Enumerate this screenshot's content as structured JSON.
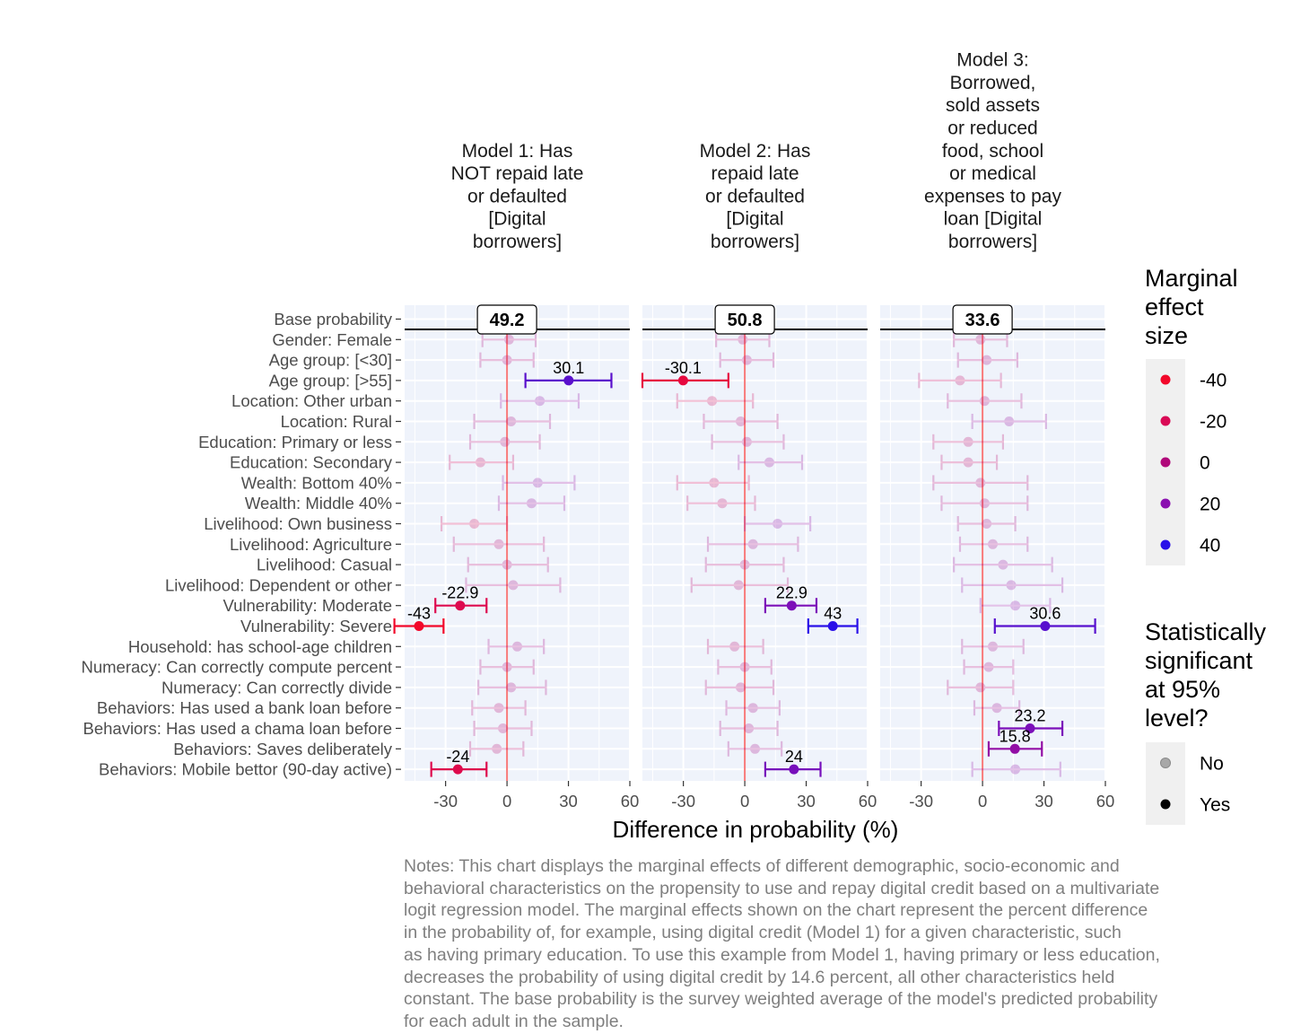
{
  "chart_data": {
    "type": "dot-errorbar",
    "xlabel": "Difference in probability (%)",
    "xlim": [
      -50,
      60
    ],
    "xticks": [
      -30,
      0,
      30,
      60
    ],
    "grid": true,
    "legend_position": "right",
    "rows": [
      "Base probability",
      "Gender: Female",
      "Age group: [<30]",
      "Age group: [>55]",
      "Location: Other urban",
      "Location: Rural",
      "Education: Primary or less",
      "Education: Secondary",
      "Wealth: Bottom 40%",
      "Wealth: Middle 40%",
      "Livelihood: Own business",
      "Livelihood: Agriculture",
      "Livelihood: Casual",
      "Livelihood: Dependent or other",
      "Vulnerability: Moderate",
      "Vulnerability: Severe",
      "Household: has school-age children",
      "Numeracy: Can correctly compute percent",
      "Numeracy: Can correctly divide",
      "Behaviors: Has used a bank loan before",
      "Behaviors: Has used a chama loan before",
      "Behaviors: Saves deliberately",
      "Behaviors: Mobile bettor (90-day active)"
    ],
    "panels": [
      {
        "title": [
          "Model 1: Has",
          "NOT repaid late",
          "or defaulted",
          "[Digital",
          "borrowers]"
        ],
        "base_label": "49.2",
        "points": [
          {
            "est": 1,
            "lo": -12,
            "hi": 14,
            "sig": false
          },
          {
            "est": 0,
            "lo": -13,
            "hi": 13,
            "sig": false
          },
          {
            "est": 30.1,
            "lo": 9,
            "hi": 51,
            "sig": true,
            "label": "30.1"
          },
          {
            "est": 16,
            "lo": -3,
            "hi": 35,
            "sig": false
          },
          {
            "est": 2,
            "lo": -16,
            "hi": 21,
            "sig": false
          },
          {
            "est": -1,
            "lo": -18,
            "hi": 16,
            "sig": false
          },
          {
            "est": -13,
            "lo": -28,
            "hi": 3,
            "sig": false
          },
          {
            "est": 15,
            "lo": -2,
            "hi": 33,
            "sig": false
          },
          {
            "est": 12,
            "lo": -4,
            "hi": 28,
            "sig": false
          },
          {
            "est": -16,
            "lo": -32,
            "hi": 0,
            "sig": false
          },
          {
            "est": -4,
            "lo": -26,
            "hi": 18,
            "sig": false
          },
          {
            "est": 0,
            "lo": -19,
            "hi": 20,
            "sig": false
          },
          {
            "est": 3,
            "lo": -20,
            "hi": 26,
            "sig": false
          },
          {
            "est": -22.9,
            "lo": -35,
            "hi": -10,
            "sig": true,
            "label": "-22.9"
          },
          {
            "est": -43,
            "lo": -55,
            "hi": -31,
            "sig": true,
            "label": "-43"
          },
          {
            "est": 5,
            "lo": -9,
            "hi": 18,
            "sig": false
          },
          {
            "est": 0,
            "lo": -13,
            "hi": 13,
            "sig": false
          },
          {
            "est": 2,
            "lo": -14,
            "hi": 19,
            "sig": false
          },
          {
            "est": -4,
            "lo": -17,
            "hi": 9,
            "sig": false
          },
          {
            "est": -2,
            "lo": -16,
            "hi": 12,
            "sig": false
          },
          {
            "est": -5,
            "lo": -18,
            "hi": 8,
            "sig": false
          },
          {
            "est": -24,
            "lo": -37,
            "hi": -10,
            "sig": true,
            "label": "-24"
          }
        ]
      },
      {
        "title": [
          "Model 2: Has",
          "repaid late",
          "or defaulted",
          "[Digital",
          "borrowers]"
        ],
        "base_label": "50.8",
        "points": [
          {
            "est": -1,
            "lo": -14,
            "hi": 12,
            "sig": false
          },
          {
            "est": 1,
            "lo": -12,
            "hi": 14,
            "sig": false
          },
          {
            "est": -30.1,
            "lo": -50,
            "hi": -8,
            "sig": true,
            "label": "-30.1"
          },
          {
            "est": -16,
            "lo": -33,
            "hi": 4,
            "sig": false
          },
          {
            "est": -2,
            "lo": -20,
            "hi": 16,
            "sig": false
          },
          {
            "est": 1,
            "lo": -16,
            "hi": 19,
            "sig": false
          },
          {
            "est": 12,
            "lo": -3,
            "hi": 28,
            "sig": false
          },
          {
            "est": -15,
            "lo": -33,
            "hi": 2,
            "sig": false
          },
          {
            "est": -11,
            "lo": -28,
            "hi": 5,
            "sig": false
          },
          {
            "est": 16,
            "lo": 0,
            "hi": 32,
            "sig": false
          },
          {
            "est": 4,
            "lo": -18,
            "hi": 26,
            "sig": false
          },
          {
            "est": 0,
            "lo": -19,
            "hi": 19,
            "sig": false
          },
          {
            "est": -3,
            "lo": -26,
            "hi": 21,
            "sig": false
          },
          {
            "est": 22.9,
            "lo": 10,
            "hi": 35,
            "sig": true,
            "label": "22.9"
          },
          {
            "est": 43,
            "lo": 31,
            "hi": 55,
            "sig": true,
            "label": "43"
          },
          {
            "est": -5,
            "lo": -18,
            "hi": 9,
            "sig": false
          },
          {
            "est": 0,
            "lo": -13,
            "hi": 13,
            "sig": false
          },
          {
            "est": -2,
            "lo": -19,
            "hi": 14,
            "sig": false
          },
          {
            "est": 4,
            "lo": -9,
            "hi": 17,
            "sig": false
          },
          {
            "est": 2,
            "lo": -12,
            "hi": 16,
            "sig": false
          },
          {
            "est": 5,
            "lo": -8,
            "hi": 18,
            "sig": false
          },
          {
            "est": 24,
            "lo": 10,
            "hi": 37,
            "sig": true,
            "label": "24"
          }
        ]
      },
      {
        "title": [
          "Model 3:",
          "Borrowed,",
          "sold assets",
          "or reduced",
          "food, school",
          "or medical",
          "expenses to pay",
          "loan [Digital",
          "borrowers]"
        ],
        "base_label": "33.6",
        "points": [
          {
            "est": -1,
            "lo": -14,
            "hi": 12,
            "sig": false
          },
          {
            "est": 2,
            "lo": -12,
            "hi": 17,
            "sig": false
          },
          {
            "est": -11,
            "lo": -31,
            "hi": 9,
            "sig": false
          },
          {
            "est": 1,
            "lo": -17,
            "hi": 19,
            "sig": false
          },
          {
            "est": 13,
            "lo": -5,
            "hi": 31,
            "sig": false
          },
          {
            "est": -7,
            "lo": -24,
            "hi": 10,
            "sig": false
          },
          {
            "est": -7,
            "lo": -20,
            "hi": 7,
            "sig": false
          },
          {
            "est": -1,
            "lo": -24,
            "hi": 22,
            "sig": false
          },
          {
            "est": 1,
            "lo": -20,
            "hi": 22,
            "sig": false
          },
          {
            "est": 2,
            "lo": -12,
            "hi": 16,
            "sig": false
          },
          {
            "est": 5,
            "lo": -11,
            "hi": 22,
            "sig": false
          },
          {
            "est": 10,
            "lo": -14,
            "hi": 34,
            "sig": false
          },
          {
            "est": 14,
            "lo": -10,
            "hi": 39,
            "sig": false
          },
          {
            "est": 16,
            "lo": -1,
            "hi": 33,
            "sig": false
          },
          {
            "est": 30.6,
            "lo": 6,
            "hi": 55,
            "sig": true,
            "label": "30.6"
          },
          {
            "est": 5,
            "lo": -10,
            "hi": 20,
            "sig": false
          },
          {
            "est": 3,
            "lo": -9,
            "hi": 15,
            "sig": false
          },
          {
            "est": -1,
            "lo": -17,
            "hi": 15,
            "sig": false
          },
          {
            "est": 7,
            "lo": -4,
            "hi": 18,
            "sig": false
          },
          {
            "est": 23.2,
            "lo": 8,
            "hi": 39,
            "sig": true,
            "label": "23.2"
          },
          {
            "est": 15.8,
            "lo": 3,
            "hi": 29,
            "sig": true,
            "label": "15.8"
          },
          {
            "est": 16,
            "lo": -5,
            "hi": 38,
            "sig": false
          }
        ]
      }
    ],
    "legend_color": {
      "title": [
        "Marginal",
        "effect",
        "size"
      ],
      "items": [
        {
          "label": "-40",
          "color": "#f2082a"
        },
        {
          "label": "-20",
          "color": "#d90a55"
        },
        {
          "label": "0",
          "color": "#b0087a"
        },
        {
          "label": "20",
          "color": "#8a0fb0"
        },
        {
          "label": "40",
          "color": "#2a10e8"
        }
      ]
    },
    "legend_alpha": {
      "title": [
        "Statistically",
        "significant",
        "at 95%",
        "level?"
      ],
      "items": [
        {
          "label": "No",
          "color": "#a8a8a8"
        },
        {
          "label": "Yes",
          "color": "#000000"
        }
      ]
    }
  },
  "notes": "Notes: This chart displays the marginal effects of different demographic, socio-economic and\nbehavioral characteristics on the propensity to use and repay digital credit based on a multivariate\nlogit regression model. The marginal effects shown on the chart represent the percent difference\nin the probability of, for example, using digital credit (Model 1) for a given characteristic, such\nas having primary education. To use this example from Model 1, having primary or less education,\ndecreases the probability of using digital credit by 14.6 percent, all other characteristics held\nconstant. The base probability is the survey weighted average of the model's predicted probability\nfor each adult in the sample."
}
